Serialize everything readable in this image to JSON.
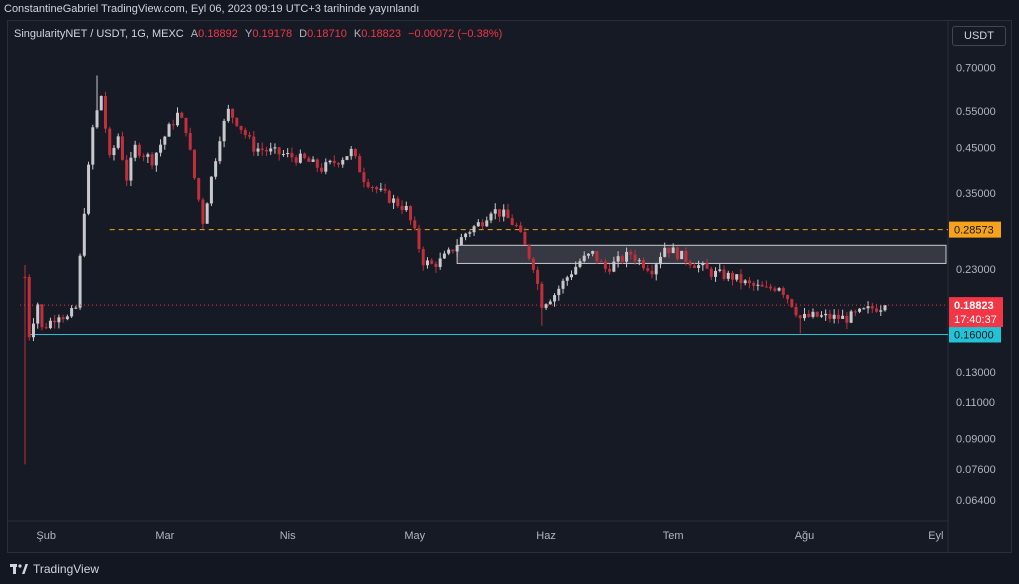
{
  "header": {
    "published": "ConstantineGabriel TradingView.com, Eyl 06, 2023 09:19 UTC+3 tarihinde yayınlandı"
  },
  "legend": {
    "symbol": "SingularityNET / USDT, 1G, MEXC",
    "open_label": "A",
    "open": "0.18892",
    "high_label": "Y",
    "high": "0.19178",
    "low_label": "D",
    "low": "0.18710",
    "close_label": "K",
    "close": "0.18823",
    "change": "−0.00072 (−0.38%)"
  },
  "currency_button": "USDT",
  "footer": {
    "brand": "TradingView"
  },
  "colors": {
    "up": "#c8c9cc",
    "down": "#c0303a",
    "resistance": "#f7a21b",
    "support": "#22c3d6",
    "last_price": "#f23645"
  },
  "chart_data": {
    "type": "candlestick",
    "scale": "log",
    "ylim": [
      0.058,
      0.78
    ],
    "y_ticks": [
      "0.70000",
      "0.55000",
      "0.45000",
      "0.35000",
      "0.23000",
      "0.13000",
      "0.11000",
      "0.09000",
      "0.07600",
      "0.06400"
    ],
    "x_ticks": [
      "Şub",
      "Mar",
      "Nis",
      "May",
      "Haz",
      "Tem",
      "Ağu",
      "Eyl"
    ],
    "x_tick_day": [
      5,
      33,
      62,
      92,
      123,
      153,
      184,
      215
    ],
    "last_price_label": "0.18823",
    "countdown": "17:40:37",
    "levels": [
      {
        "name": "resistance",
        "value": 0.28573,
        "label": "0.28573",
        "style": "dashed",
        "start_day": 20
      },
      {
        "name": "support",
        "value": 0.16,
        "label": "0.16000",
        "style": "solid",
        "start_day": 1
      }
    ],
    "zone": {
      "low": 0.237,
      "high": 0.262,
      "start_day": 102,
      "end_day": 245
    },
    "grid": false,
    "anchors": [
      [
        0,
        0.22
      ],
      [
        1,
        0.16
      ],
      [
        3,
        0.19
      ],
      [
        4,
        0.165
      ],
      [
        6,
        0.172
      ],
      [
        8,
        0.18
      ],
      [
        10,
        0.175
      ],
      [
        12,
        0.185
      ],
      [
        14,
        0.32
      ],
      [
        16,
        0.5
      ],
      [
        18,
        0.6
      ],
      [
        20,
        0.42
      ],
      [
        22,
        0.48
      ],
      [
        24,
        0.38
      ],
      [
        26,
        0.45
      ],
      [
        30,
        0.42
      ],
      [
        34,
        0.5
      ],
      [
        36,
        0.54
      ],
      [
        38,
        0.5
      ],
      [
        40,
        0.38
      ],
      [
        42,
        0.3
      ],
      [
        44,
        0.38
      ],
      [
        46,
        0.48
      ],
      [
        48,
        0.55
      ],
      [
        50,
        0.52
      ],
      [
        54,
        0.45
      ],
      [
        58,
        0.44
      ],
      [
        62,
        0.43
      ],
      [
        66,
        0.42
      ],
      [
        70,
        0.4
      ],
      [
        74,
        0.42
      ],
      [
        77,
        0.44
      ],
      [
        80,
        0.38
      ],
      [
        84,
        0.35
      ],
      [
        88,
        0.33
      ],
      [
        90,
        0.32
      ],
      [
        92,
        0.28
      ],
      [
        94,
        0.24
      ],
      [
        96,
        0.235
      ],
      [
        98,
        0.24
      ],
      [
        100,
        0.25
      ],
      [
        104,
        0.28
      ],
      [
        108,
        0.3
      ],
      [
        110,
        0.32
      ],
      [
        113,
        0.31
      ],
      [
        116,
        0.29
      ],
      [
        118,
        0.26
      ],
      [
        120,
        0.235
      ],
      [
        122,
        0.19
      ],
      [
        125,
        0.2
      ],
      [
        128,
        0.22
      ],
      [
        131,
        0.24
      ],
      [
        134,
        0.25
      ],
      [
        137,
        0.23
      ],
      [
        140,
        0.24
      ],
      [
        143,
        0.25
      ],
      [
        145,
        0.24
      ],
      [
        148,
        0.23
      ],
      [
        151,
        0.26
      ],
      [
        154,
        0.25
      ],
      [
        157,
        0.24
      ],
      [
        162,
        0.225
      ],
      [
        167,
        0.22
      ],
      [
        171,
        0.21
      ],
      [
        175,
        0.205
      ],
      [
        178,
        0.21
      ],
      [
        181,
        0.19
      ],
      [
        183,
        0.175
      ],
      [
        186,
        0.177
      ],
      [
        190,
        0.176
      ],
      [
        194,
        0.175
      ],
      [
        197,
        0.18
      ],
      [
        200,
        0.185
      ],
      [
        203,
        0.188
      ]
    ]
  }
}
